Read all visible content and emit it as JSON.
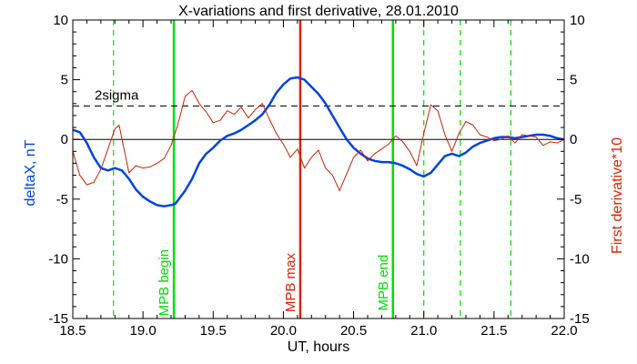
{
  "chart_data": {
    "type": "line",
    "title": "X-variations and first derivative, 28.01.2010",
    "xlabel": "UT, hours",
    "ylabel_left": "deltaX, nT",
    "ylabel_right": "First derivative*10",
    "xlim": [
      18.5,
      22.0
    ],
    "ylim_left": [
      -15,
      10
    ],
    "ylim_right": [
      -15,
      10
    ],
    "x_ticks": [
      18.5,
      19.0,
      19.5,
      20.0,
      20.5,
      21.0,
      21.5,
      22.0
    ],
    "x_tick_labels": [
      "18.5",
      "19.0",
      "19.5",
      "20.0",
      "20.5",
      "21.0",
      "21.5",
      "22.0"
    ],
    "y_ticks": [
      -15,
      -10,
      -5,
      0,
      5,
      10
    ],
    "y_tick_labels": [
      "-15",
      "-10",
      "-5",
      "0",
      "5",
      "10"
    ],
    "colors": {
      "deltaX": "#0044dd",
      "derivative": "#cc2200",
      "mpb": "#00e000",
      "max": "#dd2200",
      "axis": "#000000"
    },
    "series": [
      {
        "name": "deltaX",
        "axis": "left",
        "x": [
          18.5,
          18.55,
          18.6,
          18.65,
          18.7,
          18.75,
          18.8,
          18.85,
          18.9,
          18.95,
          19.0,
          19.05,
          19.1,
          19.15,
          19.2,
          19.23,
          19.3,
          19.35,
          19.4,
          19.45,
          19.5,
          19.55,
          19.6,
          19.65,
          19.7,
          19.75,
          19.8,
          19.85,
          19.9,
          19.95,
          20.0,
          20.05,
          20.1,
          20.15,
          20.2,
          20.25,
          20.3,
          20.35,
          20.4,
          20.45,
          20.5,
          20.55,
          20.6,
          20.65,
          20.7,
          20.75,
          20.8,
          20.85,
          20.9,
          20.95,
          21.0,
          21.05,
          21.1,
          21.15,
          21.2,
          21.25,
          21.3,
          21.35,
          21.4,
          21.45,
          21.5,
          21.55,
          21.6,
          21.65,
          21.7,
          21.75,
          21.8,
          21.85,
          21.9,
          21.95,
          22.0
        ],
        "y": [
          0.8,
          0.6,
          -0.3,
          -1.5,
          -2.4,
          -2.6,
          -2.4,
          -2.6,
          -3.3,
          -4.2,
          -4.8,
          -5.2,
          -5.5,
          -5.6,
          -5.5,
          -5.4,
          -4.3,
          -3.3,
          -2.0,
          -1.2,
          -0.7,
          -0.1,
          0.3,
          0.5,
          0.8,
          1.2,
          1.6,
          2.1,
          2.9,
          3.9,
          4.6,
          5.1,
          5.2,
          5.0,
          4.4,
          3.8,
          3.0,
          2.0,
          1.0,
          0.0,
          -0.7,
          -1.2,
          -1.6,
          -1.8,
          -1.9,
          -1.9,
          -2.0,
          -2.2,
          -2.5,
          -2.9,
          -3.1,
          -2.8,
          -2.1,
          -1.4,
          -1.2,
          -1.4,
          -1.1,
          -0.6,
          -0.3,
          -0.1,
          0.1,
          0.2,
          0.2,
          0.1,
          0.2,
          0.3,
          0.4,
          0.4,
          0.3,
          0.1,
          0.0
        ]
      },
      {
        "name": "First derivative*10",
        "axis": "right",
        "x": [
          18.5,
          18.55,
          18.6,
          18.65,
          18.7,
          18.75,
          18.8,
          18.83,
          18.86,
          18.9,
          18.95,
          19.0,
          19.05,
          19.1,
          19.15,
          19.2,
          19.25,
          19.3,
          19.35,
          19.4,
          19.45,
          19.5,
          19.55,
          19.6,
          19.65,
          19.7,
          19.75,
          19.8,
          19.85,
          19.9,
          19.95,
          20.0,
          20.05,
          20.1,
          20.15,
          20.2,
          20.25,
          20.3,
          20.35,
          20.4,
          20.45,
          20.5,
          20.55,
          20.6,
          20.65,
          20.7,
          20.75,
          20.8,
          20.85,
          20.9,
          20.95,
          21.0,
          21.05,
          21.1,
          21.15,
          21.2,
          21.25,
          21.3,
          21.35,
          21.4,
          21.45,
          21.5,
          21.55,
          21.6,
          21.65,
          21.7,
          21.75,
          21.8,
          21.85,
          21.9,
          21.95,
          22.0
        ],
        "y": [
          -1.0,
          -3.0,
          -3.8,
          -3.6,
          -2.5,
          -0.8,
          0.9,
          1.2,
          -0.5,
          -2.8,
          -2.2,
          -2.4,
          -2.3,
          -2.0,
          -1.6,
          -0.5,
          1.3,
          3.6,
          4.1,
          3.0,
          2.3,
          1.4,
          1.6,
          2.4,
          2.1,
          2.7,
          1.8,
          2.5,
          3.0,
          1.7,
          0.5,
          -0.4,
          -1.5,
          -0.8,
          -2.4,
          -1.5,
          -0.9,
          -2.4,
          -3.0,
          -4.3,
          -2.9,
          -1.5,
          -0.9,
          -1.8,
          -1.2,
          -0.8,
          -0.4,
          0.3,
          -0.2,
          -1.0,
          -2.2,
          0.5,
          2.9,
          2.4,
          0.4,
          -1.0,
          0.5,
          1.5,
          1.2,
          0.4,
          0.2,
          -0.1,
          0.0,
          0.3,
          -0.3,
          0.4,
          0.3,
          0.2,
          -0.5,
          -0.2,
          -0.3,
          0.0
        ]
      }
    ],
    "reference_lines": {
      "zero": 0,
      "sigma": 2.8,
      "sigma_label": "2sigma"
    },
    "vertical_lines": [
      {
        "x": 19.22,
        "label": "MPB begin",
        "style": "solid",
        "color": "#00e000"
      },
      {
        "x": 20.12,
        "label": "MPB max",
        "style": "solid",
        "color": "#dd2200"
      },
      {
        "x": 20.78,
        "label": "MPB end",
        "style": "solid",
        "color": "#00e000"
      },
      {
        "x": 18.79,
        "label": "",
        "style": "dashed",
        "color": "#00e000"
      },
      {
        "x": 21.0,
        "label": "",
        "style": "dashed",
        "color": "#00e000"
      },
      {
        "x": 21.26,
        "label": "",
        "style": "dashed",
        "color": "#00e000"
      },
      {
        "x": 21.62,
        "label": "",
        "style": "dashed",
        "color": "#00e000"
      }
    ]
  }
}
